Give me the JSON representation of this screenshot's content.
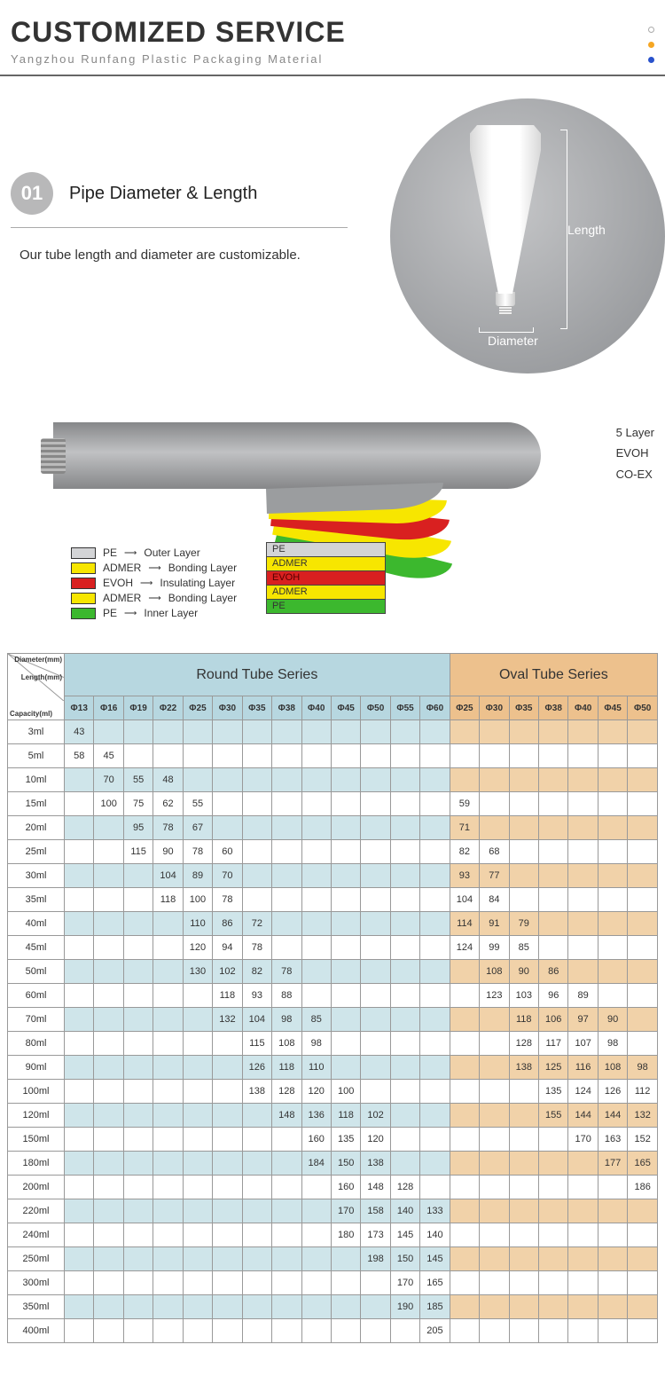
{
  "header": {
    "title": "CUSTOMIZED SERVICE",
    "subtitle": "Yangzhou Runfang Plastic Packaging Material"
  },
  "section1": {
    "badge": "01",
    "title": "Pipe Diameter & Length",
    "description": "Our tube length and diameter are customizable.",
    "dim_length": "Length",
    "dim_diameter": "Diameter"
  },
  "layers": {
    "side_labels": [
      "5 Layer",
      "EVOH",
      "CO-EX"
    ],
    "stack": [
      "PE",
      "ADMER",
      "EVOH",
      "ADMER",
      "PE"
    ],
    "legend": [
      {
        "color": "#d3d4d6",
        "name": "PE",
        "desc": "Outer Layer"
      },
      {
        "color": "#f7e600",
        "name": "ADMER",
        "desc": "Bonding Layer"
      },
      {
        "color": "#d92020",
        "name": "EVOH",
        "desc": "Insulating Layer"
      },
      {
        "color": "#f7e600",
        "name": "ADMER",
        "desc": "Bonding Layer"
      },
      {
        "color": "#3cb82e",
        "name": "PE",
        "desc": "Inner Layer"
      }
    ]
  },
  "table": {
    "corner_labels": [
      "Diameter(mm)",
      "Length(mm)",
      "Capacity(ml)"
    ],
    "round_title": "Round Tube Series",
    "oval_title": "Oval Tube Series",
    "round_cols": [
      "Φ13",
      "Φ16",
      "Φ19",
      "Φ22",
      "Φ25",
      "Φ30",
      "Φ35",
      "Φ38",
      "Φ40",
      "Φ45",
      "Φ50",
      "Φ55",
      "Φ60"
    ],
    "oval_cols": [
      "Φ25",
      "Φ30",
      "Φ35",
      "Φ38",
      "Φ40",
      "Φ45",
      "Φ50"
    ],
    "rows": [
      {
        "cap": "3ml",
        "round": [
          "43",
          "",
          "",
          "",
          "",
          "",
          "",
          "",
          "",
          "",
          "",
          "",
          ""
        ],
        "oval": [
          "",
          "",
          "",
          "",
          "",
          "",
          ""
        ]
      },
      {
        "cap": "5ml",
        "round": [
          "58",
          "45",
          "",
          "",
          "",
          "",
          "",
          "",
          "",
          "",
          "",
          "",
          ""
        ],
        "oval": [
          "",
          "",
          "",
          "",
          "",
          "",
          ""
        ]
      },
      {
        "cap": "10ml",
        "round": [
          "",
          "70",
          "55",
          "48",
          "",
          "",
          "",
          "",
          "",
          "",
          "",
          "",
          ""
        ],
        "oval": [
          "",
          "",
          "",
          "",
          "",
          "",
          ""
        ]
      },
      {
        "cap": "15ml",
        "round": [
          "",
          "100",
          "75",
          "62",
          "55",
          "",
          "",
          "",
          "",
          "",
          "",
          "",
          ""
        ],
        "oval": [
          "59",
          "",
          "",
          "",
          "",
          "",
          ""
        ]
      },
      {
        "cap": "20ml",
        "round": [
          "",
          "",
          "95",
          "78",
          "67",
          "",
          "",
          "",
          "",
          "",
          "",
          "",
          ""
        ],
        "oval": [
          "71",
          "",
          "",
          "",
          "",
          "",
          ""
        ]
      },
      {
        "cap": "25ml",
        "round": [
          "",
          "",
          "115",
          "90",
          "78",
          "60",
          "",
          "",
          "",
          "",
          "",
          "",
          ""
        ],
        "oval": [
          "82",
          "68",
          "",
          "",
          "",
          "",
          ""
        ]
      },
      {
        "cap": "30ml",
        "round": [
          "",
          "",
          "",
          "104",
          "89",
          "70",
          "",
          "",
          "",
          "",
          "",
          "",
          ""
        ],
        "oval": [
          "93",
          "77",
          "",
          "",
          "",
          "",
          ""
        ]
      },
      {
        "cap": "35ml",
        "round": [
          "",
          "",
          "",
          "118",
          "100",
          "78",
          "",
          "",
          "",
          "",
          "",
          "",
          ""
        ],
        "oval": [
          "104",
          "84",
          "",
          "",
          "",
          "",
          ""
        ]
      },
      {
        "cap": "40ml",
        "round": [
          "",
          "",
          "",
          "",
          "110",
          "86",
          "72",
          "",
          "",
          "",
          "",
          "",
          ""
        ],
        "oval": [
          "114",
          "91",
          "79",
          "",
          "",
          "",
          ""
        ]
      },
      {
        "cap": "45ml",
        "round": [
          "",
          "",
          "",
          "",
          "120",
          "94",
          "78",
          "",
          "",
          "",
          "",
          "",
          ""
        ],
        "oval": [
          "124",
          "99",
          "85",
          "",
          "",
          "",
          ""
        ]
      },
      {
        "cap": "50ml",
        "round": [
          "",
          "",
          "",
          "",
          "130",
          "102",
          "82",
          "78",
          "",
          "",
          "",
          "",
          ""
        ],
        "oval": [
          "",
          "108",
          "90",
          "86",
          "",
          "",
          ""
        ]
      },
      {
        "cap": "60ml",
        "round": [
          "",
          "",
          "",
          "",
          "",
          "118",
          "93",
          "88",
          "",
          "",
          "",
          "",
          ""
        ],
        "oval": [
          "",
          "123",
          "103",
          "96",
          "89",
          "",
          ""
        ]
      },
      {
        "cap": "70ml",
        "round": [
          "",
          "",
          "",
          "",
          "",
          "132",
          "104",
          "98",
          "85",
          "",
          "",
          "",
          ""
        ],
        "oval": [
          "",
          "",
          "118",
          "106",
          "97",
          "90",
          ""
        ]
      },
      {
        "cap": "80ml",
        "round": [
          "",
          "",
          "",
          "",
          "",
          "",
          "115",
          "108",
          "98",
          "",
          "",
          "",
          ""
        ],
        "oval": [
          "",
          "",
          "128",
          "117",
          "107",
          "98",
          ""
        ]
      },
      {
        "cap": "90ml",
        "round": [
          "",
          "",
          "",
          "",
          "",
          "",
          "126",
          "118",
          "110",
          "",
          "",
          "",
          ""
        ],
        "oval": [
          "",
          "",
          "138",
          "125",
          "116",
          "108",
          "98"
        ]
      },
      {
        "cap": "100ml",
        "round": [
          "",
          "",
          "",
          "",
          "",
          "",
          "138",
          "128",
          "120",
          "100",
          "",
          "",
          ""
        ],
        "oval": [
          "",
          "",
          "",
          "135",
          "124",
          "126",
          "112"
        ]
      },
      {
        "cap": "120ml",
        "round": [
          "",
          "",
          "",
          "",
          "",
          "",
          "",
          "148",
          "136",
          "118",
          "102",
          "",
          ""
        ],
        "oval": [
          "",
          "",
          "",
          "155",
          "144",
          "144",
          "132"
        ]
      },
      {
        "cap": "150ml",
        "round": [
          "",
          "",
          "",
          "",
          "",
          "",
          "",
          "",
          "160",
          "135",
          "120",
          "",
          ""
        ],
        "oval": [
          "",
          "",
          "",
          "",
          "170",
          "163",
          "152"
        ]
      },
      {
        "cap": "180ml",
        "round": [
          "",
          "",
          "",
          "",
          "",
          "",
          "",
          "",
          "184",
          "150",
          "138",
          "",
          ""
        ],
        "oval": [
          "",
          "",
          "",
          "",
          "",
          "177",
          "165"
        ]
      },
      {
        "cap": "200ml",
        "round": [
          "",
          "",
          "",
          "",
          "",
          "",
          "",
          "",
          "",
          "160",
          "148",
          "128",
          ""
        ],
        "oval": [
          "",
          "",
          "",
          "",
          "",
          "",
          "186"
        ]
      },
      {
        "cap": "220ml",
        "round": [
          "",
          "",
          "",
          "",
          "",
          "",
          "",
          "",
          "",
          "170",
          "158",
          "140",
          "133"
        ],
        "oval": [
          "",
          "",
          "",
          "",
          "",
          "",
          ""
        ]
      },
      {
        "cap": "240ml",
        "round": [
          "",
          "",
          "",
          "",
          "",
          "",
          "",
          "",
          "",
          "180",
          "173",
          "145",
          "140"
        ],
        "oval": [
          "",
          "",
          "",
          "",
          "",
          "",
          ""
        ]
      },
      {
        "cap": "250ml",
        "round": [
          "",
          "",
          "",
          "",
          "",
          "",
          "",
          "",
          "",
          "",
          "198",
          "150",
          "145"
        ],
        "oval": [
          "",
          "",
          "",
          "",
          "",
          "",
          ""
        ]
      },
      {
        "cap": "300ml",
        "round": [
          "",
          "",
          "",
          "",
          "",
          "",
          "",
          "",
          "",
          "",
          "",
          "170",
          "165"
        ],
        "oval": [
          "",
          "",
          "",
          "",
          "",
          "",
          ""
        ]
      },
      {
        "cap": "350ml",
        "round": [
          "",
          "",
          "",
          "",
          "",
          "",
          "",
          "",
          "",
          "",
          "",
          "190",
          "185"
        ],
        "oval": [
          "",
          "",
          "",
          "",
          "",
          "",
          ""
        ]
      },
      {
        "cap": "400ml",
        "round": [
          "",
          "",
          "",
          "",
          "",
          "",
          "",
          "",
          "",
          "",
          "",
          "",
          "205"
        ],
        "oval": [
          "",
          "",
          "",
          "",
          "",
          "",
          ""
        ]
      }
    ],
    "colors": {
      "round_header": "#b7d7e0",
      "oval_header": "#edc18d",
      "round_alt": "#cfe5ea",
      "oval_alt": "#f1d2a9",
      "border": "#999999"
    }
  }
}
